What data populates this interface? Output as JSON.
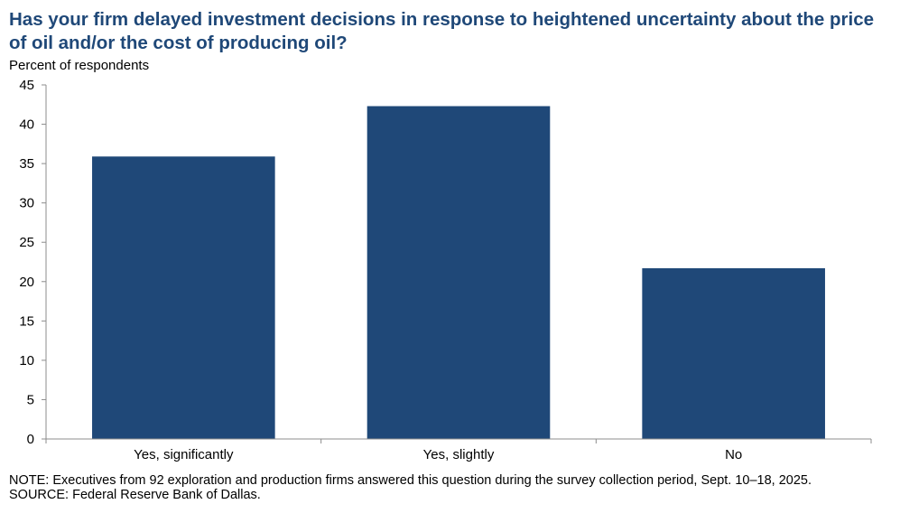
{
  "title": "Has your firm delayed investment decisions in response to heightened uncertainty about the price of oil and/or the cost of producing oil?",
  "colors": {
    "title": "#1f4878",
    "bar": "#1f4878",
    "axis": "#8c8c8c"
  },
  "chart_data": {
    "type": "bar",
    "title": "Has your firm delayed investment decisions in response to heightened uncertainty about the price of oil and/or the cost of producing oil?",
    "ylabel": "Percent of respondents",
    "xlabel": "",
    "categories": [
      "Yes, significantly",
      "Yes, slightly",
      "No"
    ],
    "values": [
      35.9,
      42.3,
      21.7
    ],
    "ylim": [
      0,
      45
    ],
    "yticks": [
      "0",
      "5",
      "10",
      "15",
      "20",
      "25",
      "30",
      "35",
      "40",
      "45"
    ],
    "grid": false,
    "legend": "none"
  },
  "footer": {
    "note": "NOTE: Executives from 92 exploration and production firms answered this question during the survey collection period, Sept. 10–18, 2025.",
    "source": "SOURCE: Federal Reserve Bank of Dallas."
  }
}
